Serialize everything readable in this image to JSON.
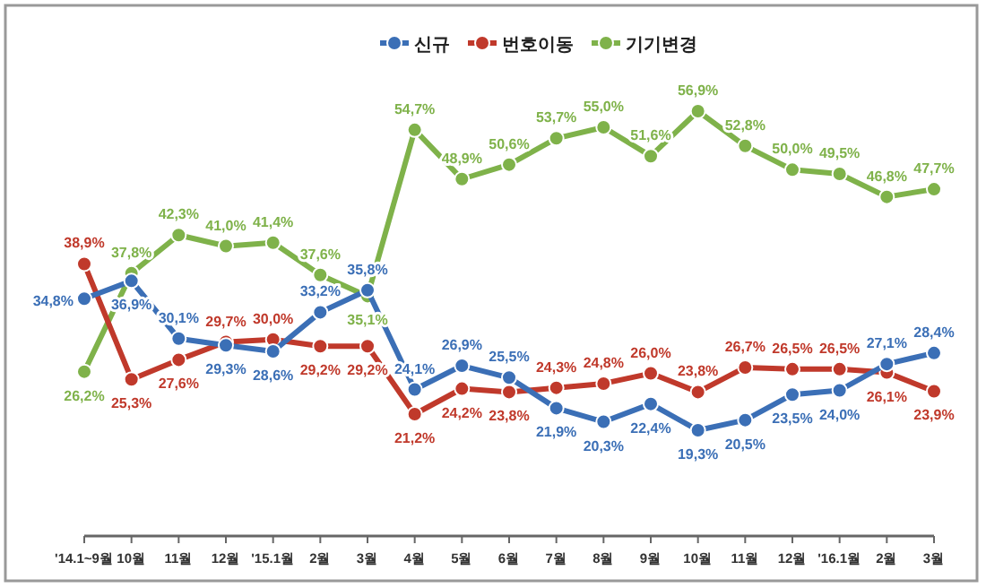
{
  "chart_data": {
    "type": "line",
    "categories": [
      "'14.1~9월",
      "10월",
      "11월",
      "12월",
      "'15.1월",
      "2월",
      "3월",
      "4월",
      "5월",
      "6월",
      "7월",
      "8월",
      "9월",
      "10월",
      "11월",
      "12월",
      "'16.1월",
      "2월",
      "3월"
    ],
    "series": [
      {
        "name": "신규",
        "color": "#3b6fb6",
        "values": [
          34.8,
          36.9,
          30.1,
          29.3,
          28.6,
          33.2,
          35.8,
          24.1,
          26.9,
          25.5,
          21.9,
          20.3,
          22.4,
          19.3,
          20.5,
          23.5,
          24.0,
          27.1,
          28.4
        ],
        "value_labels": [
          "34,8%",
          "36,9%",
          "30,1%",
          "29,3%",
          "28,6%",
          "33,2%",
          "35,8%",
          "24,1%",
          "26,9%",
          "25,5%",
          "21,9%",
          "20,3%",
          "22,4%",
          "19,3%",
          "20,5%",
          "23,5%",
          "24,0%",
          "27,1%",
          "28,4%"
        ]
      },
      {
        "name": "번호이동",
        "color": "#c0392b",
        "values": [
          38.9,
          25.3,
          27.6,
          29.7,
          30.0,
          29.2,
          29.2,
          21.2,
          24.2,
          23.8,
          24.3,
          24.8,
          26.0,
          23.8,
          26.7,
          26.5,
          26.5,
          26.1,
          23.9
        ],
        "value_labels": [
          "38,9%",
          "25,3%",
          "27,6%",
          "29,7%",
          "30,0%",
          "29,2%",
          "29,2%",
          "21,2%",
          "24,2%",
          "23,8%",
          "24,3%",
          "24,8%",
          "26,0%",
          "23,8%",
          "26,7%",
          "26,5%",
          "26,5%",
          "26,1%",
          "23,9%"
        ]
      },
      {
        "name": "기기변경",
        "color": "#7fb24a",
        "values": [
          26.2,
          37.8,
          42.3,
          41.0,
          41.4,
          37.6,
          35.1,
          54.7,
          48.9,
          50.6,
          53.7,
          55.0,
          51.6,
          56.9,
          52.8,
          50.0,
          49.5,
          46.8,
          47.7
        ],
        "value_labels": [
          "26,2%",
          "37,8%",
          "42,3%",
          "41,0%",
          "41,4%",
          "37,6%",
          "35,1%",
          "54,7%",
          "48,9%",
          "50,6%",
          "53,7%",
          "55,0%",
          "51,6%",
          "56,9%",
          "52,8%",
          "50,0%",
          "49,5%",
          "46,8%",
          "47,7%"
        ]
      }
    ],
    "marker": "circle",
    "legend": "top",
    "grid": false
  }
}
